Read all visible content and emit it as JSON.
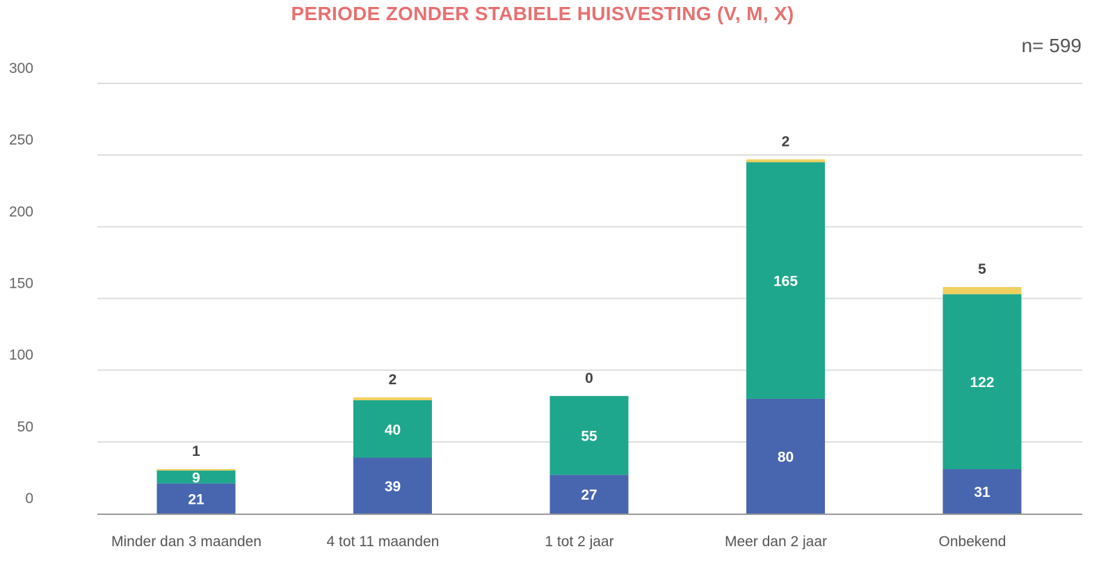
{
  "title": "PERIODE ZONDER STABIELE HUISVESTING (V, M, X)",
  "sample_size": "n= 599",
  "chart_data": {
    "type": "bar",
    "stacked": true,
    "title": "PERIODE ZONDER STABIELE HUISVESTING (V, M, X)",
    "xlabel": "",
    "ylabel": "",
    "ylim": [
      0,
      300
    ],
    "yticks": [
      0,
      50,
      100,
      150,
      200,
      250,
      300
    ],
    "grid": true,
    "legend": "none",
    "categories": [
      "Minder dan 3 maanden",
      "4 tot 11 maanden",
      "1 tot 2 jaar",
      "Meer dan 2 jaar",
      "Onbekend"
    ],
    "series": [
      {
        "values": [
          21,
          39,
          27,
          80,
          31
        ],
        "color": "#4866b0"
      },
      {
        "values": [
          9,
          40,
          55,
          165,
          122
        ],
        "color": "#1ea78c"
      },
      {
        "values": [
          1,
          2,
          0,
          2,
          5
        ],
        "color": "#f0d060"
      }
    ]
  }
}
